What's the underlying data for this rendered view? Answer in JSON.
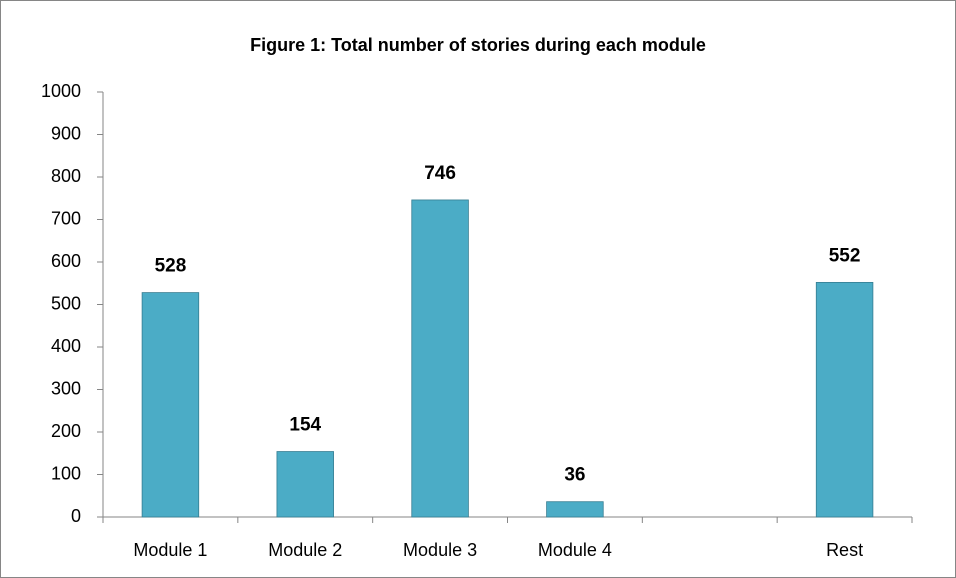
{
  "chart_data": {
    "type": "bar",
    "title": "Figure 1: Total number of stories during each module",
    "categories": [
      "Module 1",
      "Module 2",
      "Module 3",
      "Module 4",
      null,
      "Rest"
    ],
    "values": [
      528,
      154,
      746,
      36,
      null,
      552
    ],
    "color": "#4bacc6",
    "ylim": [
      0,
      1000
    ],
    "yticks": [
      0,
      100,
      200,
      300,
      400,
      500,
      600,
      700,
      800,
      900,
      1000
    ],
    "grid": false
  }
}
